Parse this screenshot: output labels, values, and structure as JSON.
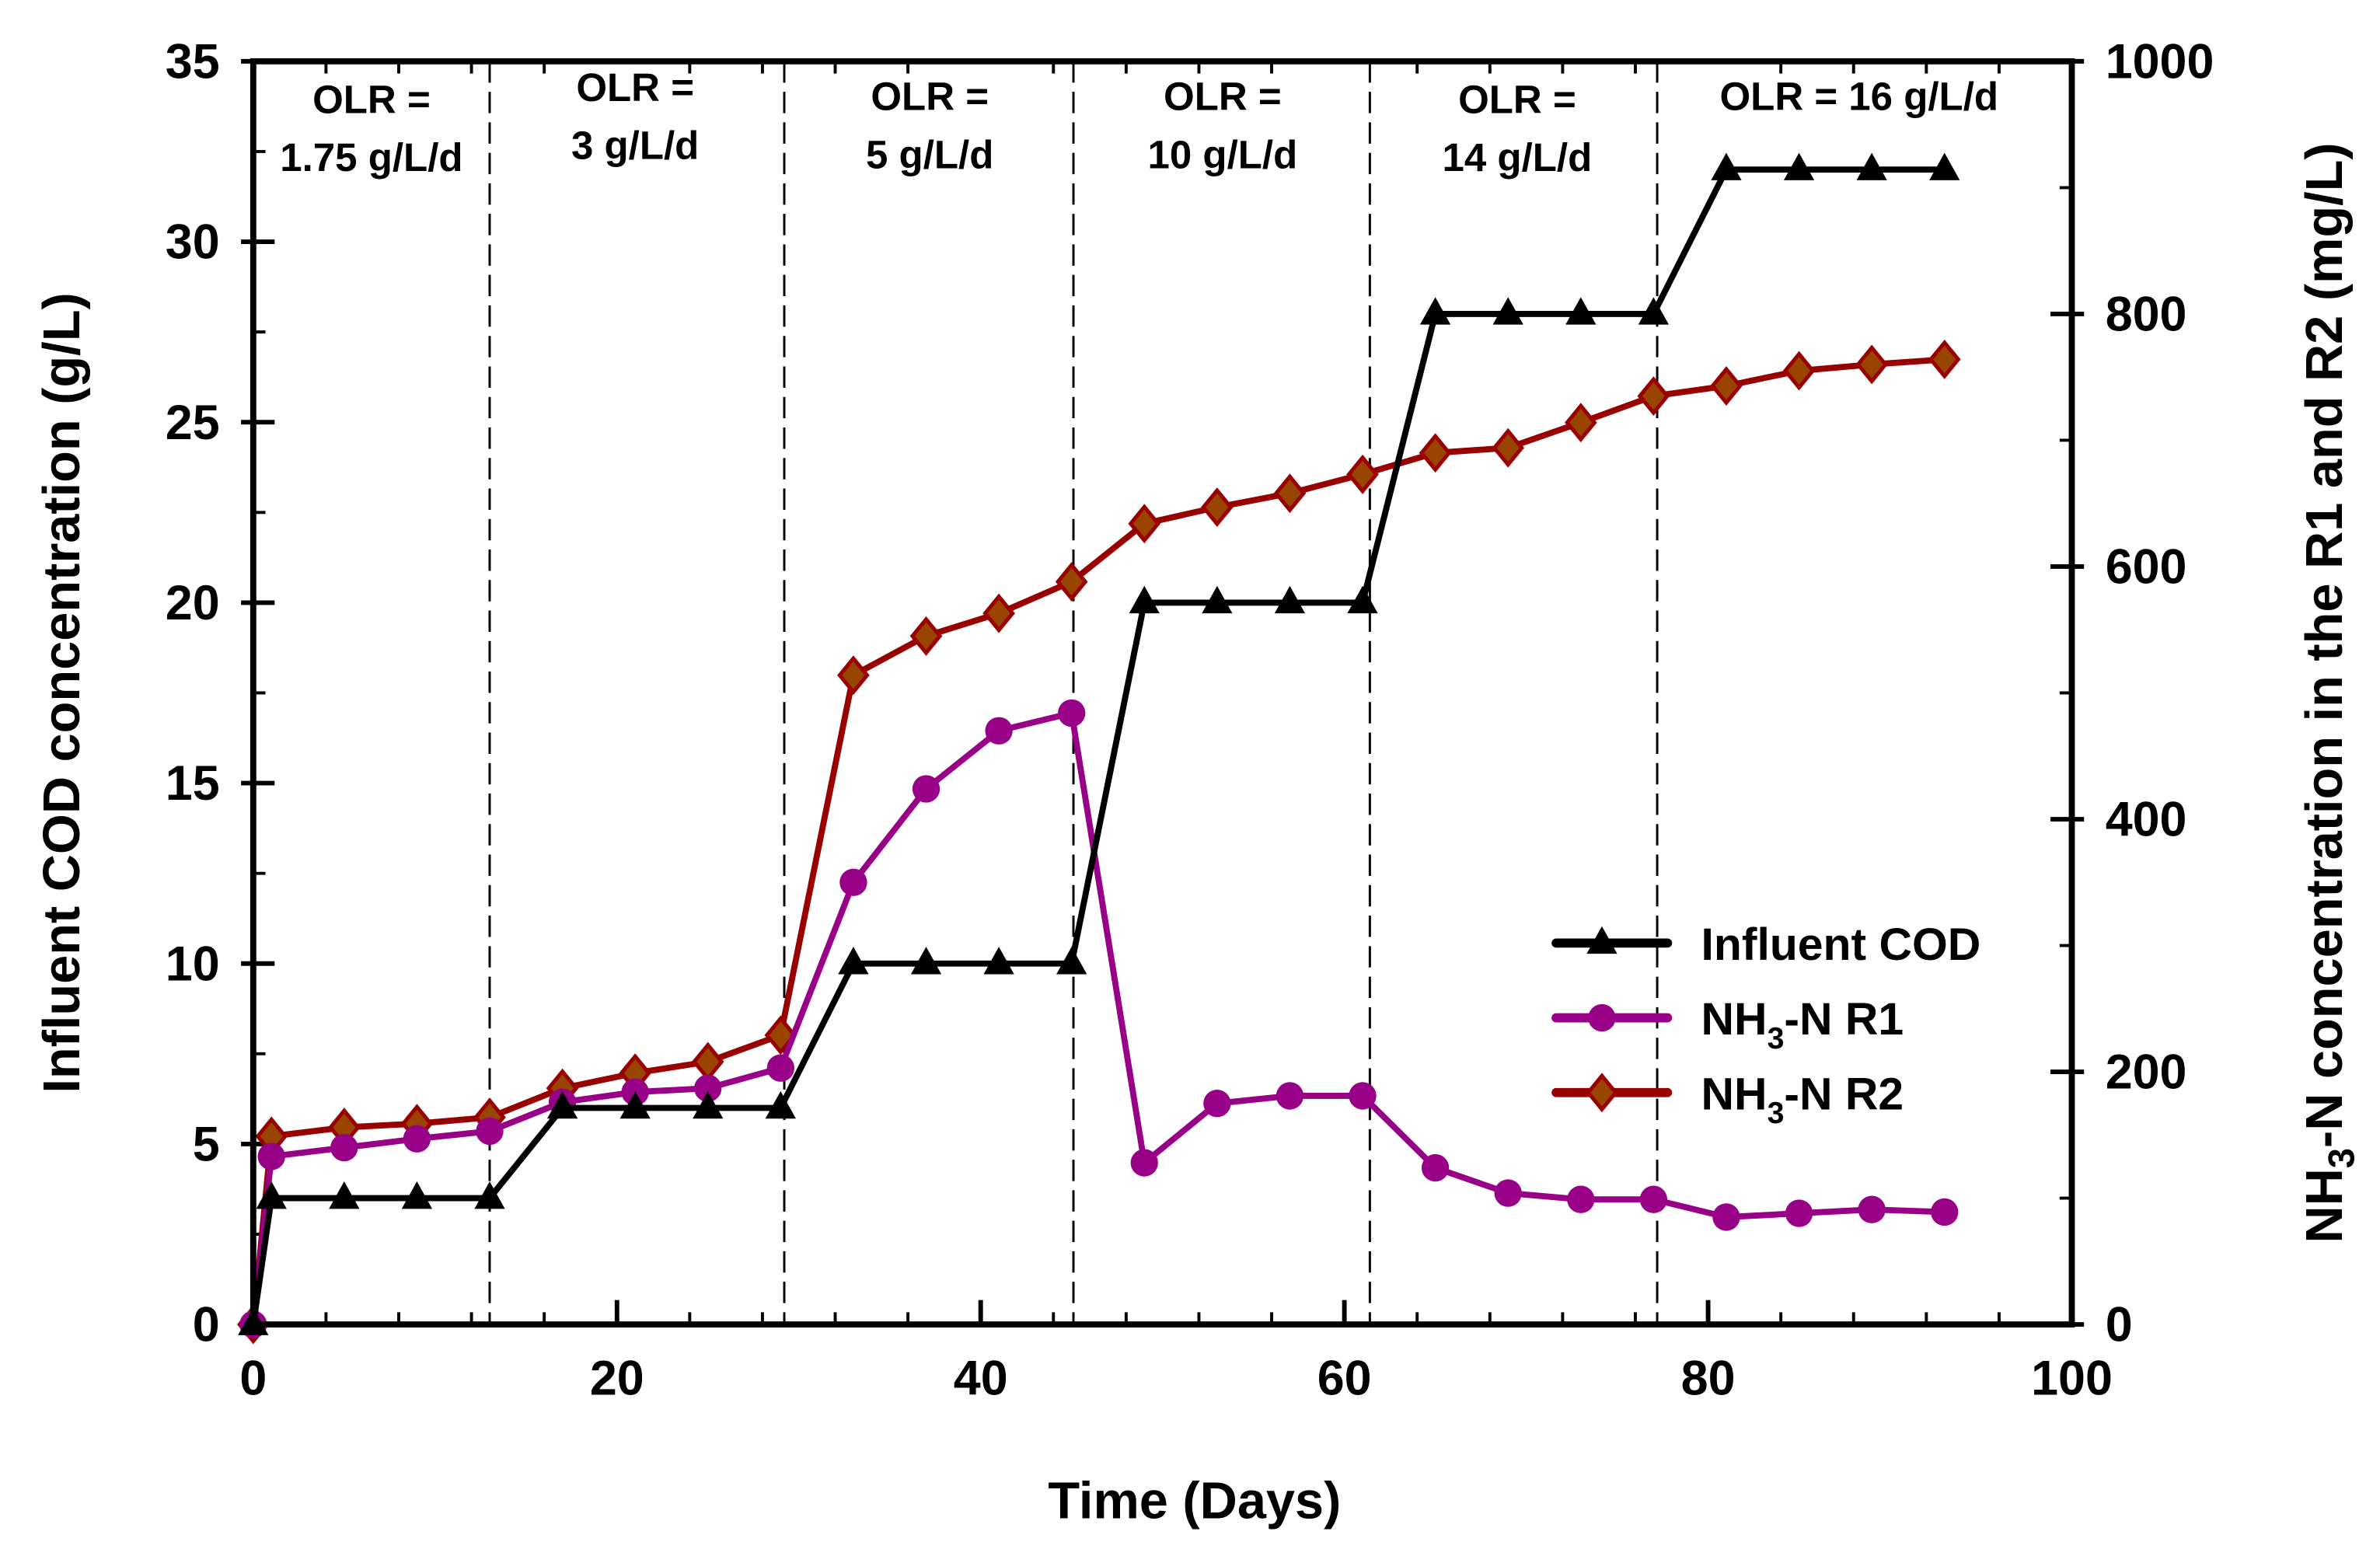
{
  "chart_data": {
    "type": "line",
    "xlabel": "Time (Days)",
    "ylabel_left": "Influent COD concentration (g/L)",
    "ylabel_right_parts": [
      "NH",
      "3",
      "-N concentration in the R1 and R2 (mg/L)"
    ],
    "xlim": [
      0,
      100
    ],
    "ylim_left": [
      0,
      35
    ],
    "ylim_right": [
      0,
      1000
    ],
    "x_ticks": [
      0,
      20,
      40,
      60,
      80,
      100
    ],
    "y_left_ticks": [
      0,
      5,
      10,
      15,
      20,
      25,
      30,
      35
    ],
    "y_right_ticks": [
      0,
      200,
      400,
      600,
      800,
      1000
    ],
    "grid": false,
    "legend_position": "center-right",
    "x": [
      0,
      1,
      5,
      9,
      13,
      17,
      21,
      25,
      29,
      33,
      37,
      41,
      45,
      49,
      53,
      57,
      61,
      65,
      69,
      73,
      77,
      81,
      85,
      89,
      93
    ],
    "series": [
      {
        "name": "Influent COD",
        "legend_parts": [
          "Influent COD"
        ],
        "axis": "left",
        "color": "#000000",
        "marker": "triangle",
        "values": [
          0,
          3.5,
          3.5,
          3.5,
          3.5,
          6,
          6,
          6,
          6,
          10,
          10,
          10,
          10,
          20,
          20,
          20,
          20,
          28,
          28,
          28,
          28,
          32,
          32,
          32,
          32
        ]
      },
      {
        "name": "NH3-N R1",
        "legend_parts": [
          "NH",
          "3",
          "-N R1"
        ],
        "axis": "right",
        "color": "#990088",
        "marker": "circle",
        "values": [
          0,
          133,
          140,
          147,
          153,
          176,
          184,
          187,
          203,
          350,
          424,
          470,
          484,
          128,
          175,
          181,
          181,
          124,
          104,
          99,
          99,
          85,
          88,
          91,
          89
        ]
      },
      {
        "name": "NH3-N R2",
        "legend_parts": [
          "NH",
          "3",
          "-N R2"
        ],
        "axis": "right",
        "color": "#990000",
        "fill": "#994400",
        "marker": "diamond",
        "values": [
          0,
          149,
          156,
          159,
          164,
          187,
          199,
          208,
          229,
          514,
          545,
          563,
          588,
          634,
          647,
          658,
          673,
          690,
          694,
          714,
          735,
          743,
          755,
          760,
          764
        ]
      }
    ],
    "phase_boundaries": [
      13,
      29.2,
      45.1,
      61.4,
      77.2
    ],
    "annotations": [
      {
        "lines": [
          "OLR =",
          "1.75 g/L/d"
        ],
        "x": 6.5
      },
      {
        "lines": [
          "OLR =",
          "3 g/L/d"
        ],
        "x": 21
      },
      {
        "lines": [
          "OLR =",
          "5 g/L/d"
        ],
        "x": 37.2
      },
      {
        "lines": [
          "OLR =",
          "10 g/L/d"
        ],
        "x": 53.3
      },
      {
        "lines": [
          "OLR =",
          "14 g/L/d"
        ],
        "x": 69.5
      },
      {
        "lines": [
          "OLR = 16 g/L/d"
        ],
        "x": 88.3
      }
    ]
  }
}
